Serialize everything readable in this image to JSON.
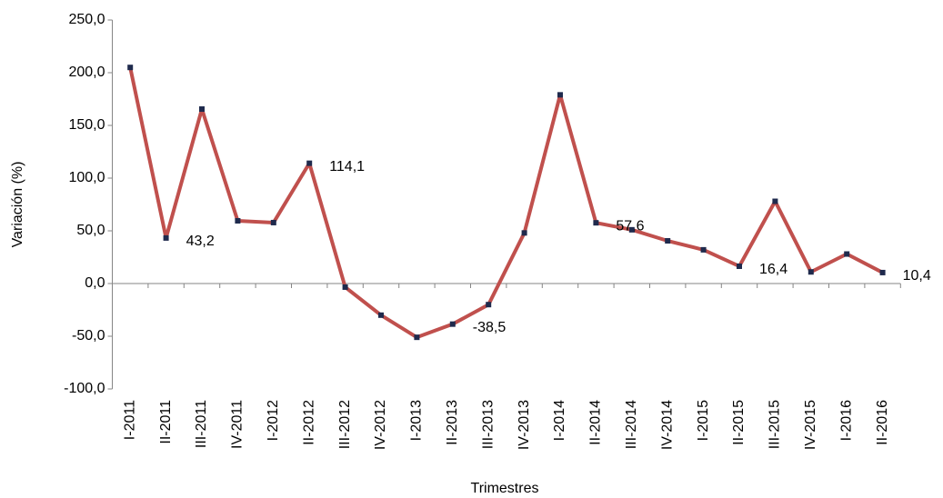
{
  "chart_data": {
    "type": "line",
    "x_label": "Trimestres",
    "y_label": "Variación (%)",
    "categories": [
      "I-2011",
      "II-2011",
      "III-2011",
      "IV-2011",
      "I-2012",
      "II-2012",
      "III-2012",
      "IV-2012",
      "I-2013",
      "II-2013",
      "III-2013",
      "IV-2013",
      "I-2014",
      "II-2014",
      "III-2014",
      "IV-2014",
      "I-2015",
      "II-2015",
      "III-2015",
      "IV-2015",
      "I-2016",
      "II-2016"
    ],
    "series": [
      {
        "color": "#c0504d",
        "marker_color": "#1f2a4d",
        "values": [
          205,
          43.2,
          165.5,
          59.5,
          57.8,
          114.1,
          -3.4,
          -30,
          -51,
          -38.5,
          -20,
          48,
          179,
          57.6,
          51,
          40.5,
          32,
          16.4,
          78,
          11,
          28,
          10.4
        ],
        "value_labels": [
          null,
          "43,2",
          null,
          null,
          null,
          "114,1",
          null,
          null,
          null,
          "-38,5",
          null,
          null,
          null,
          "57,6",
          null,
          null,
          null,
          "16,4",
          null,
          null,
          null,
          "10,4"
        ]
      }
    ],
    "ylim": [
      -100,
      250
    ],
    "yticks": [
      {
        "value": -100,
        "label": "-100,0"
      },
      {
        "value": -50,
        "label": "-50,0"
      },
      {
        "value": 0,
        "label": "0,0"
      },
      {
        "value": 50,
        "label": "50,0"
      },
      {
        "value": 100,
        "label": "100,0"
      },
      {
        "value": 150,
        "label": "150,0"
      },
      {
        "value": 200,
        "label": "200,0"
      },
      {
        "value": 250,
        "label": "250,0"
      }
    ],
    "grid": false
  }
}
